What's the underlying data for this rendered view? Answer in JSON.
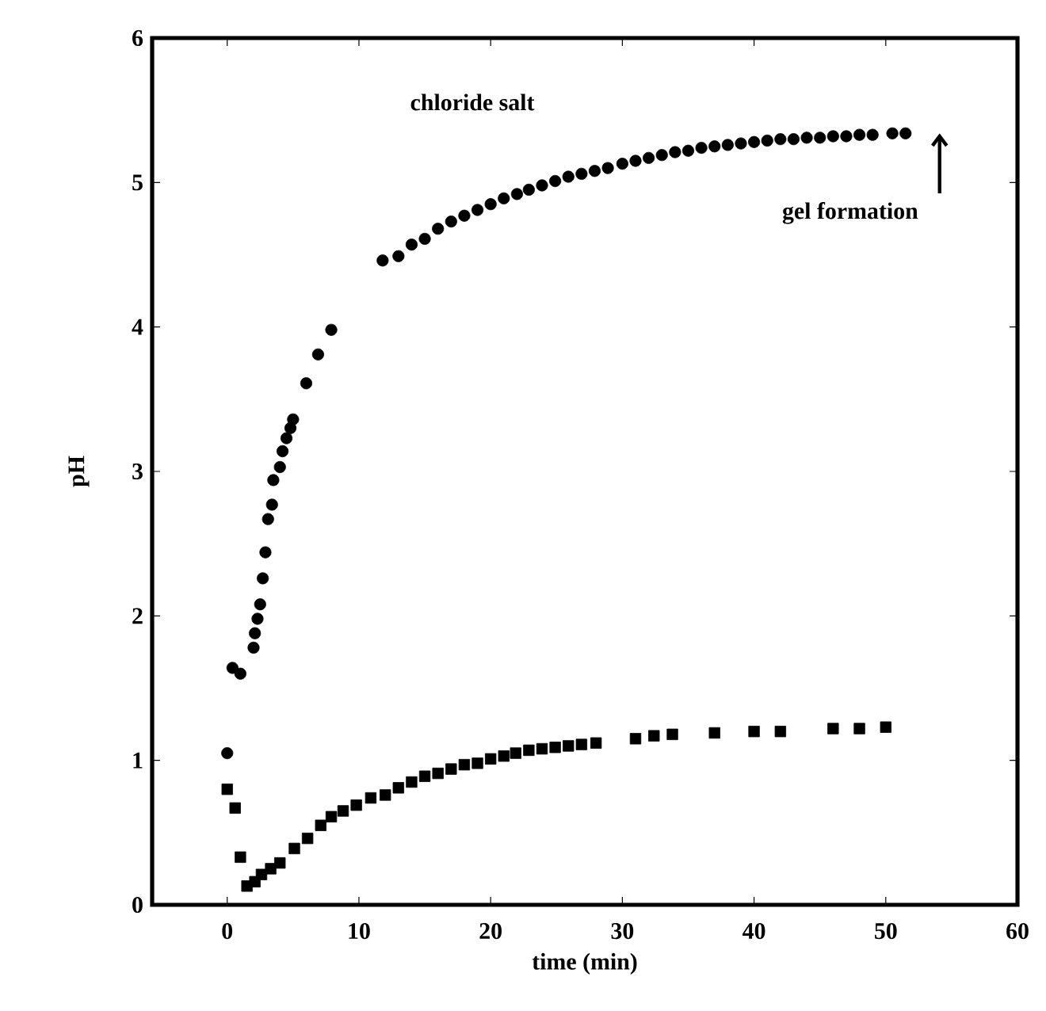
{
  "chart_data": {
    "type": "scatter",
    "xlabel": "time (min)",
    "ylabel": "pH",
    "xlim": [
      -5.7,
      60
    ],
    "xticks": [
      0,
      10,
      20,
      30,
      40,
      50,
      60
    ],
    "ylim": [
      0,
      6
    ],
    "yticks": [
      0,
      1,
      2,
      3,
      4,
      5,
      6
    ],
    "series": [
      {
        "name": "chloride salt",
        "color": "#000000",
        "marker": "circle",
        "x": [
          0,
          0.4,
          1.0,
          2.0,
          2.1,
          2.3,
          2.5,
          2.7,
          2.9,
          3.1,
          3.4,
          3.5,
          4.0,
          4.2,
          4.5,
          4.8,
          5.0,
          6.0,
          6.9,
          7.9,
          11.8,
          13,
          14,
          15,
          16,
          17,
          18,
          19,
          20,
          21,
          22,
          22.9,
          23.9,
          24.9,
          25.9,
          26.9,
          27.9,
          28.9,
          30,
          31,
          32,
          33,
          34,
          35,
          36,
          37,
          38,
          39,
          40,
          41,
          42,
          43,
          44,
          45,
          46,
          47,
          48,
          49,
          50.5,
          51.5
        ],
        "values": [
          1.05,
          1.64,
          1.6,
          1.78,
          1.88,
          1.98,
          2.08,
          2.26,
          2.44,
          2.67,
          2.77,
          2.94,
          3.03,
          3.14,
          3.23,
          3.3,
          3.36,
          3.61,
          3.81,
          3.98,
          4.46,
          4.49,
          4.57,
          4.61,
          4.68,
          4.73,
          4.77,
          4.81,
          4.85,
          4.89,
          4.92,
          4.95,
          4.98,
          5.01,
          5.04,
          5.06,
          5.08,
          5.1,
          5.13,
          5.15,
          5.17,
          5.19,
          5.21,
          5.22,
          5.24,
          5.25,
          5.26,
          5.27,
          5.28,
          5.29,
          5.3,
          5.3,
          5.31,
          5.31,
          5.32,
          5.32,
          5.33,
          5.33,
          5.34,
          5.34
        ]
      },
      {
        "color": "#000000",
        "marker": "square",
        "x": [
          0,
          0.6,
          1.0,
          1.5,
          2.1,
          2.6,
          3.3,
          4.0,
          5.1,
          6.1,
          7.1,
          7.9,
          8.8,
          9.8,
          10.9,
          12,
          13,
          14,
          15,
          16,
          17,
          18,
          19,
          20,
          21,
          21.9,
          22.9,
          23.9,
          24.9,
          25.9,
          26.9,
          28,
          31,
          32.4,
          33.8,
          37,
          40,
          42,
          46,
          48,
          50
        ],
        "values": [
          0.8,
          0.67,
          0.33,
          0.13,
          0.16,
          0.21,
          0.25,
          0.29,
          0.39,
          0.46,
          0.55,
          0.61,
          0.65,
          0.69,
          0.74,
          0.76,
          0.81,
          0.85,
          0.89,
          0.91,
          0.94,
          0.97,
          0.98,
          1.01,
          1.03,
          1.05,
          1.07,
          1.08,
          1.09,
          1.1,
          1.11,
          1.12,
          1.15,
          1.17,
          1.18,
          1.19,
          1.2,
          1.2,
          1.22,
          1.22,
          1.23
        ]
      }
    ],
    "annotations": [
      "gel formation"
    ]
  }
}
